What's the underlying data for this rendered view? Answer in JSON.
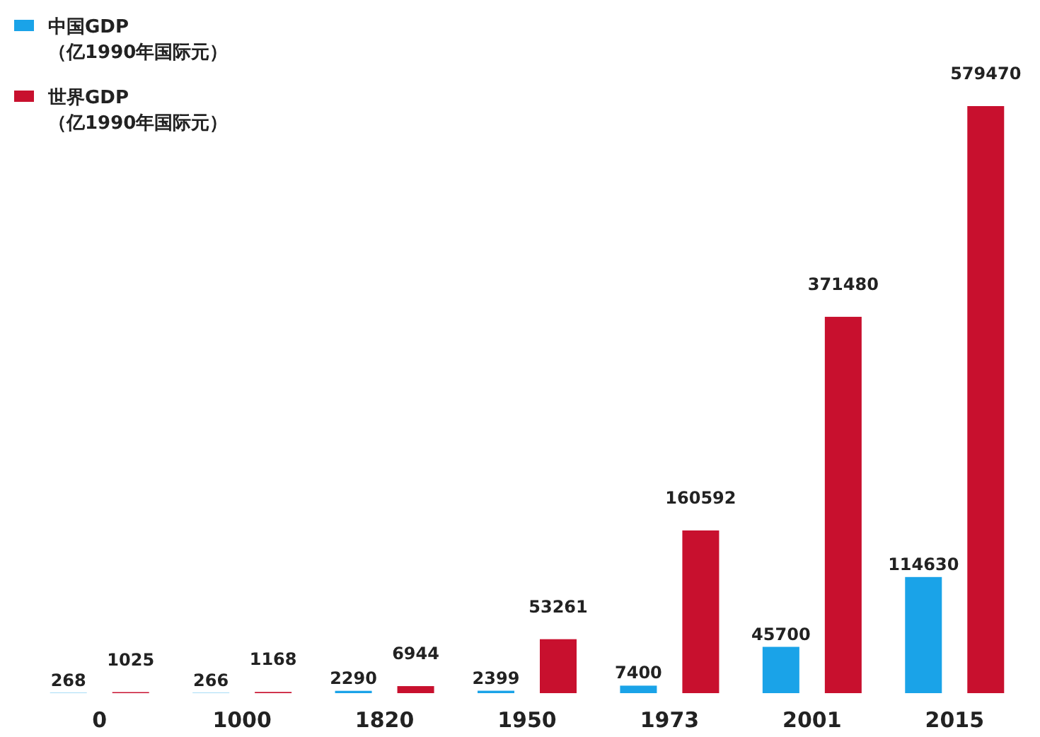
{
  "chart_data": {
    "type": "bar",
    "categories": [
      "0",
      "1000",
      "1820",
      "1950",
      "1973",
      "2001",
      "2015"
    ],
    "series": [
      {
        "name": "中国GDP\n（亿1990年国际元）",
        "color": "#1aa3e8",
        "values": [
          268,
          266,
          2290,
          2399,
          7400,
          45700,
          114630
        ]
      },
      {
        "name": "世界GDP\n（亿1990年国际元）",
        "color": "#c8102e",
        "values": [
          1025,
          1168,
          6944,
          53261,
          160592,
          371480,
          579470
        ]
      }
    ],
    "data_labels": true,
    "legend": "top left"
  }
}
